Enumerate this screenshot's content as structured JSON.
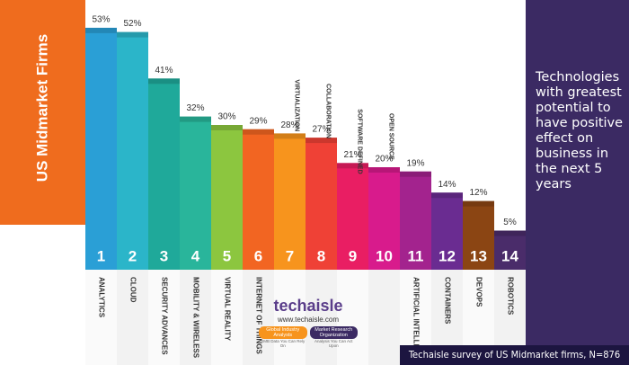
{
  "chart_data": {
    "type": "bar",
    "title": "US Midmarket Firms",
    "description": "Technologies with greatest potential to have positive effect on business in the next 5 years",
    "categories": [
      "ANALYTICS",
      "CLOUD",
      "SECURITY ADVANCES",
      "MOBILITY & WIRELESS",
      "VIRTUAL REALITY",
      "INTERNET OF THINGS",
      "VIRTUALIZATION",
      "COLLABORATION",
      "SOFTWARE DEFINED",
      "OPEN SOURCE",
      "ARTIFICIAL INTELLIGENCE",
      "CONTAINERS",
      "DEVOPS",
      "ROBOTICS"
    ],
    "ranks": [
      1,
      2,
      3,
      4,
      5,
      6,
      7,
      8,
      9,
      10,
      11,
      12,
      13,
      14
    ],
    "values": [
      53,
      52,
      41,
      32,
      30,
      29,
      28,
      27,
      21,
      20,
      19,
      14,
      12,
      5
    ],
    "value_labels": [
      "53%",
      "52%",
      "41%",
      "32%",
      "30%",
      "29%",
      "28%",
      "27%",
      "21%",
      "20%",
      "19%",
      "14%",
      "12%",
      "5%"
    ],
    "colors": [
      "#2a9fd6",
      "#2bb5c9",
      "#1fa99a",
      "#29b59b",
      "#8cc63f",
      "#f26522",
      "#f7941d",
      "#ef4136",
      "#e91e63",
      "#d81b8c",
      "#a3238e",
      "#6a2c91",
      "#8b4513",
      "#4a2c6a"
    ],
    "footnote": "Techaisle survey of US Midmarket firms, N=876",
    "brand": "techaisle",
    "url": "www.techaisle.com",
    "badges": [
      "Global Industry Analysts",
      "Market Research Organization"
    ],
    "badge_notes": [
      "SMB Data You Can Rely On",
      "Analysis You Can Act Upon"
    ]
  }
}
